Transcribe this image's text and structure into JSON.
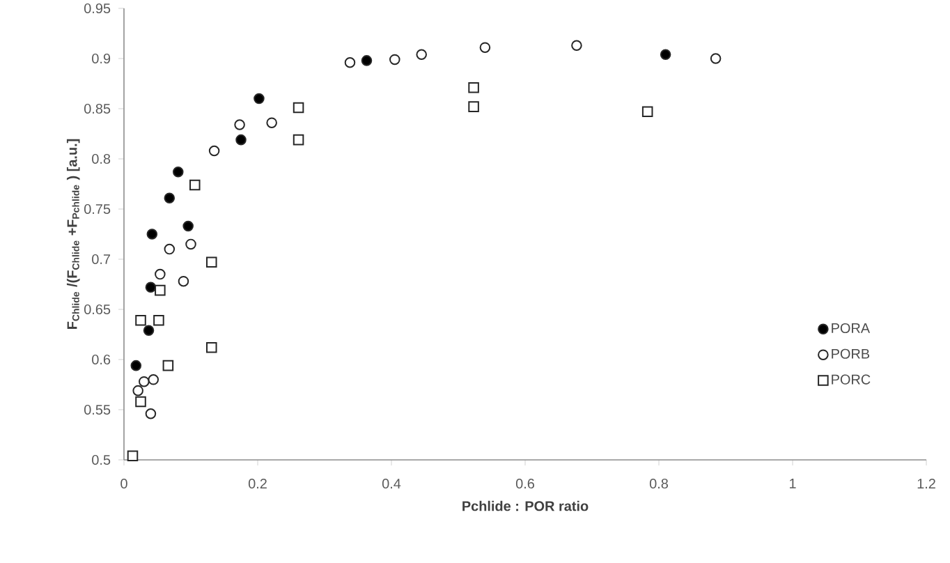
{
  "chart_data": {
    "type": "scatter",
    "xlabel": "Pchlide : POR ratio",
    "ylabel": "F$_{Chlide}$ /(F$_{Chlide}$ +F$_{Pchlide}$ ) [a.u.]",
    "xlim": [
      0,
      1.2
    ],
    "ylim": [
      0.5,
      0.95
    ],
    "xticks": [
      0,
      0.2,
      0.4,
      0.6,
      0.8,
      1,
      1.2
    ],
    "yticks": [
      0.5,
      0.55,
      0.6,
      0.65,
      0.7,
      0.75,
      0.8,
      0.85,
      0.9,
      0.95
    ],
    "legend": "right",
    "series": [
      {
        "name": "PORA",
        "color": "#000000",
        "marker": "circle",
        "x": [
          0.018,
          0.037,
          0.04,
          0.042,
          0.068,
          0.081,
          0.096,
          0.175,
          0.202,
          0.363,
          0.81
        ],
        "values": [
          0.594,
          0.629,
          0.672,
          0.725,
          0.761,
          0.787,
          0.733,
          0.819,
          0.86,
          0.898,
          0.904
        ]
      },
      {
        "name": "PORB",
        "color": "#ffffff",
        "marker": "circle",
        "x": [
          0.021,
          0.03,
          0.044,
          0.04,
          0.054,
          0.068,
          0.089,
          0.1,
          0.135,
          0.173,
          0.221,
          0.338,
          0.405,
          0.445,
          0.54,
          0.677,
          0.885
        ],
        "values": [
          0.569,
          0.578,
          0.58,
          0.546,
          0.685,
          0.71,
          0.678,
          0.715,
          0.808,
          0.834,
          0.836,
          0.896,
          0.899,
          0.904,
          0.911,
          0.913,
          0.9
        ]
      },
      {
        "name": "PORC",
        "color": "#ffffff",
        "marker": "square",
        "x": [
          0.013,
          0.025,
          0.025,
          0.052,
          0.054,
          0.066,
          0.106,
          0.131,
          0.131,
          0.261,
          0.261,
          0.523,
          0.523,
          0.783
        ],
        "values": [
          0.504,
          0.558,
          0.639,
          0.639,
          0.669,
          0.594,
          0.774,
          0.697,
          0.612,
          0.851,
          0.819,
          0.871,
          0.852,
          0.847
        ]
      }
    ]
  }
}
